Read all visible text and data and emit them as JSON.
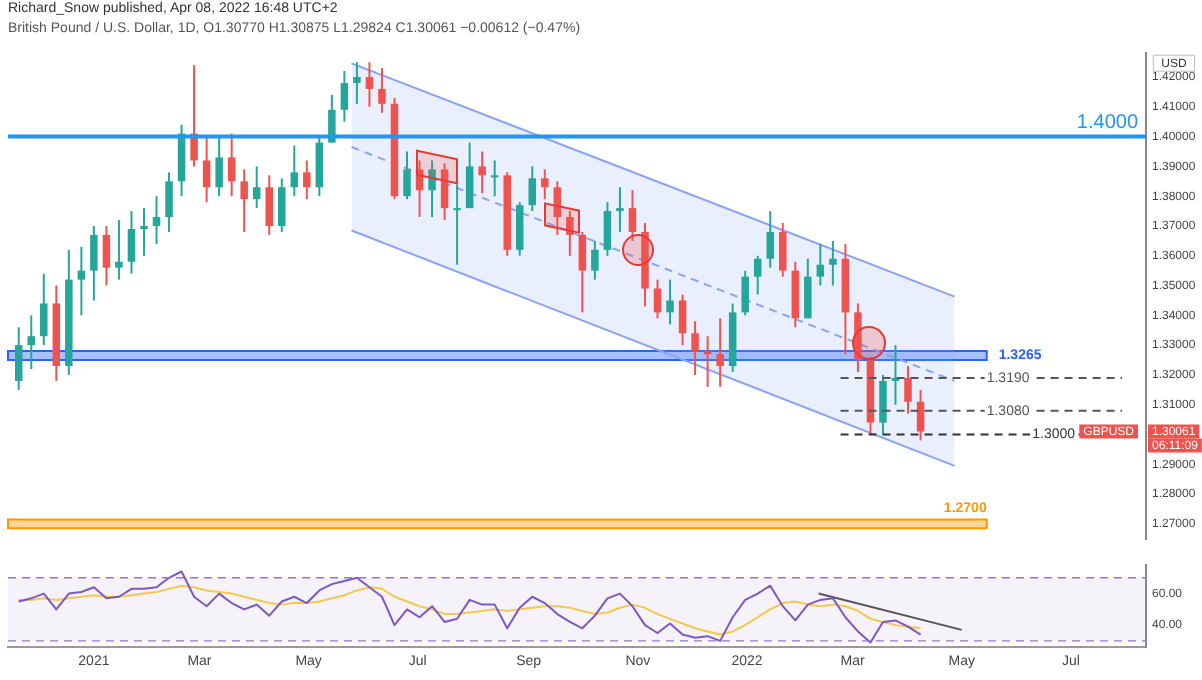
{
  "chart_data": [
    {
      "type": "candlestick",
      "subtitle": "Richard_Snow published, Apr 08, 2022 16:48 UTC+2",
      "title": "British Pound / U.S. Dollar, 1D, O1.30770 H1.30875 L1.29824 C1.30061 −0.00612 (−0.47%)",
      "ylabel": "USD",
      "x": [
        "2020-11-20",
        "2020-11-27",
        "2020-12-04",
        "2020-12-11",
        "2020-12-18",
        "2020-12-25",
        "2021-01-01",
        "2021-01-08",
        "2021-01-15",
        "2021-01-22",
        "2021-01-29",
        "2021-02-05",
        "2021-02-12",
        "2021-02-19",
        "2021-02-26",
        "2021-03-05",
        "2021-03-12",
        "2021-03-19",
        "2021-03-26",
        "2021-04-02",
        "2021-04-09",
        "2021-04-16",
        "2021-04-23",
        "2021-04-30",
        "2021-05-07",
        "2021-05-14",
        "2021-05-21",
        "2021-05-28",
        "2021-06-04",
        "2021-06-11",
        "2021-06-18",
        "2021-06-25",
        "2021-07-02",
        "2021-07-09",
        "2021-07-16",
        "2021-07-23",
        "2021-07-30",
        "2021-08-06",
        "2021-08-13",
        "2021-08-20",
        "2021-08-27",
        "2021-09-03",
        "2021-09-10",
        "2021-09-17",
        "2021-09-24",
        "2021-10-01",
        "2021-10-08",
        "2021-10-15",
        "2021-10-22",
        "2021-10-29",
        "2021-11-05",
        "2021-11-12",
        "2021-11-19",
        "2021-11-26",
        "2021-12-03",
        "2021-12-10",
        "2021-12-17",
        "2021-12-24",
        "2021-12-31",
        "2022-01-07",
        "2022-01-14",
        "2022-01-21",
        "2022-01-28",
        "2022-02-04",
        "2022-02-11",
        "2022-02-18",
        "2022-02-25",
        "2022-03-04",
        "2022-03-11",
        "2022-03-18",
        "2022-03-25",
        "2022-04-01",
        "2022-04-08"
      ],
      "ohlc": [
        [
          1.318,
          1.336,
          1.315,
          1.33
        ],
        [
          1.33,
          1.34,
          1.322,
          1.333
        ],
        [
          1.333,
          1.354,
          1.33,
          1.344
        ],
        [
          1.344,
          1.35,
          1.318,
          1.323
        ],
        [
          1.323,
          1.362,
          1.32,
          1.352
        ],
        [
          1.352,
          1.363,
          1.34,
          1.355
        ],
        [
          1.355,
          1.37,
          1.345,
          1.367
        ],
        [
          1.367,
          1.37,
          1.35,
          1.356
        ],
        [
          1.356,
          1.372,
          1.352,
          1.358
        ],
        [
          1.358,
          1.375,
          1.354,
          1.369
        ],
        [
          1.369,
          1.376,
          1.36,
          1.37
        ],
        [
          1.37,
          1.38,
          1.364,
          1.373
        ],
        [
          1.373,
          1.388,
          1.368,
          1.385
        ],
        [
          1.385,
          1.404,
          1.38,
          1.401
        ],
        [
          1.401,
          1.424,
          1.39,
          1.392
        ],
        [
          1.392,
          1.4,
          1.378,
          1.383
        ],
        [
          1.383,
          1.4,
          1.38,
          1.393
        ],
        [
          1.393,
          1.401,
          1.38,
          1.385
        ],
        [
          1.385,
          1.389,
          1.368,
          1.379
        ],
        [
          1.379,
          1.39,
          1.376,
          1.383
        ],
        [
          1.383,
          1.387,
          1.367,
          1.37
        ],
        [
          1.37,
          1.386,
          1.368,
          1.383
        ],
        [
          1.383,
          1.397,
          1.38,
          1.388
        ],
        [
          1.388,
          1.392,
          1.379,
          1.383
        ],
        [
          1.383,
          1.4,
          1.38,
          1.398
        ],
        [
          1.398,
          1.414,
          1.398,
          1.409
        ],
        [
          1.409,
          1.422,
          1.405,
          1.418
        ],
        [
          1.418,
          1.425,
          1.411,
          1.42
        ],
        [
          1.42,
          1.425,
          1.41,
          1.416
        ],
        [
          1.416,
          1.423,
          1.408,
          1.411
        ],
        [
          1.411,
          1.413,
          1.379,
          1.38
        ],
        [
          1.38,
          1.395,
          1.379,
          1.389
        ],
        [
          1.389,
          1.392,
          1.373,
          1.382
        ],
        [
          1.382,
          1.392,
          1.373,
          1.389
        ],
        [
          1.389,
          1.391,
          1.372,
          1.376
        ],
        [
          1.376,
          1.384,
          1.357,
          1.376
        ],
        [
          1.376,
          1.398,
          1.376,
          1.39
        ],
        [
          1.39,
          1.395,
          1.381,
          1.387
        ],
        [
          1.387,
          1.392,
          1.38,
          1.387
        ],
        [
          1.387,
          1.388,
          1.36,
          1.362
        ],
        [
          1.362,
          1.378,
          1.36,
          1.377
        ],
        [
          1.377,
          1.39,
          1.375,
          1.386
        ],
        [
          1.386,
          1.389,
          1.379,
          1.383
        ],
        [
          1.383,
          1.385,
          1.367,
          1.373
        ],
        [
          1.373,
          1.375,
          1.36,
          1.367
        ],
        [
          1.367,
          1.368,
          1.341,
          1.355
        ],
        [
          1.355,
          1.365,
          1.352,
          1.362
        ],
        [
          1.362,
          1.378,
          1.36,
          1.375
        ],
        [
          1.375,
          1.383,
          1.368,
          1.376
        ],
        [
          1.376,
          1.382,
          1.365,
          1.368
        ],
        [
          1.368,
          1.371,
          1.343,
          1.349
        ],
        [
          1.349,
          1.352,
          1.339,
          1.341
        ],
        [
          1.341,
          1.352,
          1.337,
          1.345
        ],
        [
          1.345,
          1.347,
          1.33,
          1.334
        ],
        [
          1.334,
          1.338,
          1.32,
          1.328
        ],
        [
          1.328,
          1.333,
          1.316,
          1.327
        ],
        [
          1.327,
          1.339,
          1.316,
          1.323
        ],
        [
          1.323,
          1.344,
          1.321,
          1.341
        ],
        [
          1.341,
          1.355,
          1.34,
          1.353
        ],
        [
          1.353,
          1.36,
          1.347,
          1.359
        ],
        [
          1.359,
          1.375,
          1.356,
          1.368
        ],
        [
          1.368,
          1.371,
          1.353,
          1.355
        ],
        [
          1.355,
          1.358,
          1.336,
          1.339
        ],
        [
          1.339,
          1.359,
          1.339,
          1.353
        ],
        [
          1.353,
          1.364,
          1.35,
          1.357
        ],
        [
          1.357,
          1.365,
          1.35,
          1.359
        ],
        [
          1.359,
          1.364,
          1.327,
          1.341
        ],
        [
          1.341,
          1.344,
          1.321,
          1.325
        ],
        [
          1.325,
          1.326,
          1.3,
          1.304
        ],
        [
          1.304,
          1.32,
          1.3,
          1.318
        ],
        [
          1.318,
          1.33,
          1.31,
          1.319
        ],
        [
          1.319,
          1.323,
          1.307,
          1.311
        ],
        [
          1.311,
          1.315,
          1.298,
          1.301
        ]
      ],
      "series": [
        {
          "type": "line",
          "color": "#8aa4f5",
          "line_style": "dashed",
          "x": [
            "2021-05-25",
            "2022-04-27"
          ],
          "values": [
            1.3965,
            1.318
          ],
          "lower": [
            1.3685,
            1.2895
          ],
          "upper": [
            1.4246,
            1.3463
          ]
        },
        {
          "type": "line",
          "color": "#8aa4f5",
          "x": [
            "2021-05-25",
            "2022-04-27"
          ],
          "values": [
            1.4246,
            1.3463
          ]
        },
        {
          "type": "line",
          "color": "#8aa4f5",
          "x": [
            "2021-05-25",
            "2022-04-27"
          ],
          "values": [
            1.3685,
            1.2895
          ]
        }
      ],
      "xlim": [
        "2020-11-14",
        "2022-08-12"
      ],
      "ylim": [
        1.265,
        1.428
      ],
      "yticks": [
        {
          "value": 1.27,
          "label": "1.27000"
        },
        {
          "value": 1.28,
          "label": "1.28000"
        },
        {
          "value": 1.29,
          "label": "1.29000"
        },
        {
          "value": 1.31,
          "label": "1.31000"
        },
        {
          "value": 1.32,
          "label": "1.32000"
        },
        {
          "value": 1.33,
          "label": "1.33000"
        },
        {
          "value": 1.34,
          "label": "1.34000"
        },
        {
          "value": 1.35,
          "label": "1.35000"
        },
        {
          "value": 1.36,
          "label": "1.36000"
        },
        {
          "value": 1.37,
          "label": "1.37000"
        },
        {
          "value": 1.38,
          "label": "1.38000"
        },
        {
          "value": 1.39,
          "label": "1.39000"
        },
        {
          "value": 1.4,
          "label": "1.40000"
        },
        {
          "value": 1.41,
          "label": "1.41000"
        },
        {
          "value": 1.42,
          "label": "1.42000"
        }
      ],
      "ref_lines": [
        {
          "axis": "y",
          "value": 1.4,
          "label": "1.4000",
          "color": "#2196f3"
        },
        {
          "axis": "y",
          "value": 1.319,
          "label": "1.3190",
          "color": "#555555",
          "line_style": "dashed"
        },
        {
          "axis": "y",
          "value": 1.308,
          "label": "1.3080",
          "color": "#555555",
          "line_style": "dashed"
        },
        {
          "axis": "y",
          "value": 1.3,
          "label": "1.3000",
          "color": "#333333",
          "line_style": "dashed"
        }
      ],
      "bands": [
        {
          "axis": "y",
          "from": 1.325,
          "to": 1.328,
          "label": "1.3265",
          "color": "#2962ff"
        },
        {
          "axis": "y",
          "from": 1.2685,
          "to": 1.2715,
          "label": "1.2700",
          "color": "#ff9800"
        }
      ],
      "annotations": [
        "GBPUSD",
        "1.30061",
        "06:11:09"
      ],
      "tick_labels": "y",
      "grid": false,
      "legend": false
    },
    {
      "type": "line",
      "x": [
        "2020-11-20",
        "2020-11-27",
        "2020-12-04",
        "2020-12-11",
        "2020-12-18",
        "2020-12-25",
        "2021-01-01",
        "2021-01-08",
        "2021-01-15",
        "2021-01-22",
        "2021-01-29",
        "2021-02-05",
        "2021-02-12",
        "2021-02-19",
        "2021-02-26",
        "2021-03-05",
        "2021-03-12",
        "2021-03-19",
        "2021-03-26",
        "2021-04-02",
        "2021-04-09",
        "2021-04-16",
        "2021-04-23",
        "2021-04-30",
        "2021-05-07",
        "2021-05-14",
        "2021-05-21",
        "2021-05-28",
        "2021-06-04",
        "2021-06-11",
        "2021-06-18",
        "2021-06-25",
        "2021-07-02",
        "2021-07-09",
        "2021-07-16",
        "2021-07-23",
        "2021-07-30",
        "2021-08-06",
        "2021-08-13",
        "2021-08-20",
        "2021-08-27",
        "2021-09-03",
        "2021-09-10",
        "2021-09-17",
        "2021-09-24",
        "2021-10-01",
        "2021-10-08",
        "2021-10-15",
        "2021-10-22",
        "2021-10-29",
        "2021-11-05",
        "2021-11-12",
        "2021-11-19",
        "2021-11-26",
        "2021-12-03",
        "2021-12-10",
        "2021-12-17",
        "2021-12-24",
        "2021-12-31",
        "2022-01-07",
        "2022-01-14",
        "2022-01-21",
        "2022-01-28",
        "2022-02-04",
        "2022-02-11",
        "2022-02-18",
        "2022-02-25",
        "2022-03-04",
        "2022-03-11",
        "2022-03-18",
        "2022-03-25",
        "2022-04-01",
        "2022-04-08"
      ],
      "series": [
        {
          "color": "#7e57c2",
          "values": [
            55,
            57,
            60,
            50,
            60,
            61,
            64,
            57,
            58,
            63,
            63,
            64,
            70,
            74,
            58,
            52,
            60,
            54,
            50,
            53,
            46,
            55,
            58,
            54,
            62,
            66,
            68,
            70,
            64,
            58,
            40,
            50,
            45,
            52,
            42,
            44,
            56,
            53,
            53,
            38,
            51,
            58,
            54,
            47,
            42,
            38,
            46,
            57,
            60,
            52,
            40,
            35,
            41,
            34,
            32,
            33,
            30,
            45,
            56,
            60,
            65,
            52,
            43,
            53,
            56,
            57,
            45,
            36,
            29,
            42,
            43,
            39,
            34
          ]
        },
        {
          "color": "#f2c94c",
          "values": [
            56,
            56,
            57,
            56,
            57,
            58,
            59,
            58,
            58,
            59,
            60,
            61,
            63,
            65,
            64,
            62,
            61,
            60,
            58,
            56,
            54,
            53,
            54,
            54,
            55,
            57,
            59,
            62,
            64,
            63,
            58,
            55,
            52,
            50,
            47,
            47,
            48,
            49,
            50,
            49,
            50,
            51,
            52,
            52,
            51,
            49,
            47,
            48,
            51,
            53,
            51,
            47,
            44,
            41,
            38,
            36,
            34,
            36,
            40,
            45,
            50,
            54,
            55,
            53,
            52,
            53,
            52,
            49,
            44,
            42,
            40,
            39,
            38
          ]
        },
        {
          "type": "line",
          "color": "#555555",
          "x": [
            "2022-02-10",
            "2022-05-01"
          ],
          "values": [
            60,
            37
          ]
        }
      ],
      "xlim": [
        "2020-11-14",
        "2022-08-12"
      ],
      "xticks": [
        {
          "value": "2021-01-01",
          "label": "2021"
        },
        {
          "value": "2021-03-01",
          "label": "Mar"
        },
        {
          "value": "2021-05-01",
          "label": "May"
        },
        {
          "value": "2021-07-01",
          "label": "Jul"
        },
        {
          "value": "2021-09-01",
          "label": "Sep"
        },
        {
          "value": "2021-11-01",
          "label": "Nov"
        },
        {
          "value": "2022-01-01",
          "label": "2022"
        },
        {
          "value": "2022-03-01",
          "label": "Mar"
        },
        {
          "value": "2022-05-01",
          "label": "May"
        },
        {
          "value": "2022-07-01",
          "label": "Jul"
        }
      ],
      "ylim": [
        26,
        78
      ],
      "yticks": [
        {
          "value": 40,
          "label": "40.00"
        },
        {
          "value": 60,
          "label": "60.00"
        }
      ],
      "bands": [
        {
          "axis": "y",
          "from": 30,
          "to": 70,
          "color": "#7e57c2"
        }
      ],
      "ref_lines": [
        {
          "axis": "y",
          "value": 70,
          "color": "#9575cd",
          "line_style": "dashed"
        },
        {
          "axis": "y",
          "value": 30,
          "color": "#9575cd",
          "line_style": "dashed"
        }
      ],
      "grid": false,
      "legend": false
    }
  ]
}
